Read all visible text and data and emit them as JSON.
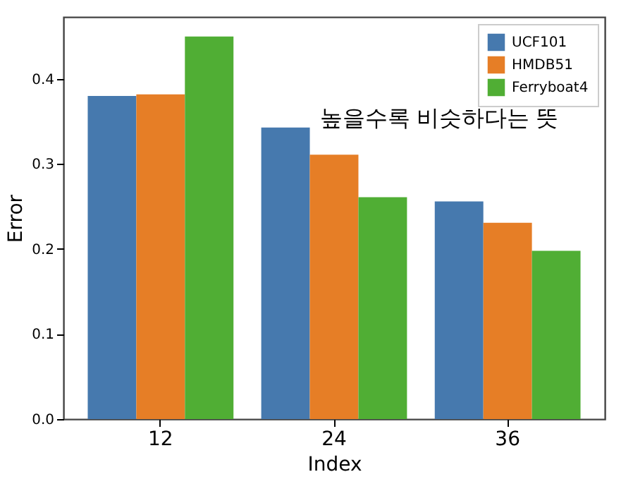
{
  "chart_data": {
    "type": "bar",
    "xlabel": "Index",
    "ylabel": "Error",
    "categories": [
      "12",
      "24",
      "36"
    ],
    "series": [
      {
        "name": "UCF101",
        "color": "#4679ae",
        "values": [
          0.38,
          0.343,
          0.256
        ]
      },
      {
        "name": "HMDB51",
        "color": "#e67e26",
        "values": [
          0.382,
          0.311,
          0.231
        ]
      },
      {
        "name": "Ferryboat4",
        "color": "#50ae34",
        "values": [
          0.45,
          0.261,
          0.198
        ]
      }
    ],
    "ylim": [
      0,
      0.473
    ],
    "yticks": [
      {
        "value": 0,
        "label": "0.0"
      },
      0.1,
      0.2,
      0.3,
      0.4
    ],
    "annotations": [
      "높을수록 비슷하다는 뜻"
    ],
    "grid": false,
    "legend": "top right"
  }
}
